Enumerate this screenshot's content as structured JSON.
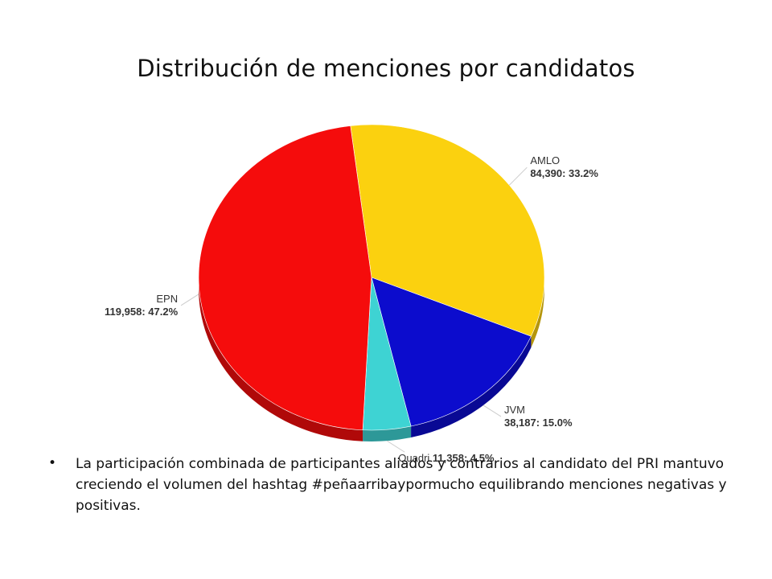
{
  "title": "Distribución de menciones por candidatos",
  "colors": {
    "EPN": "#f50c0c",
    "AMLO": "#fbd10f",
    "JVM": "#0c0ccd",
    "Quadri": "#3ed3d3"
  },
  "chart_data": {
    "type": "pie",
    "style": "3d",
    "slices": [
      {
        "name": "AMLO",
        "value": 84390,
        "percent": 33.2,
        "label": "84,390: 33.2%"
      },
      {
        "name": "JVM",
        "value": 38187,
        "percent": 15.0,
        "label": "38,187: 15.0%"
      },
      {
        "name": "Quadri",
        "value": 11358,
        "percent": 4.5,
        "label": "11,358: 4.5%"
      },
      {
        "name": "EPN",
        "value": 119958,
        "percent": 47.2,
        "label": "119,958: 47.2%"
      }
    ]
  },
  "bullet": {
    "symbol": "•",
    "text": "La participación combinada de participantes aliados y  contrarios al candidato del PRI mantuvo creciendo el volumen del hashtag #peñaarribaypormucho equilibrando menciones negativas y positivas."
  }
}
